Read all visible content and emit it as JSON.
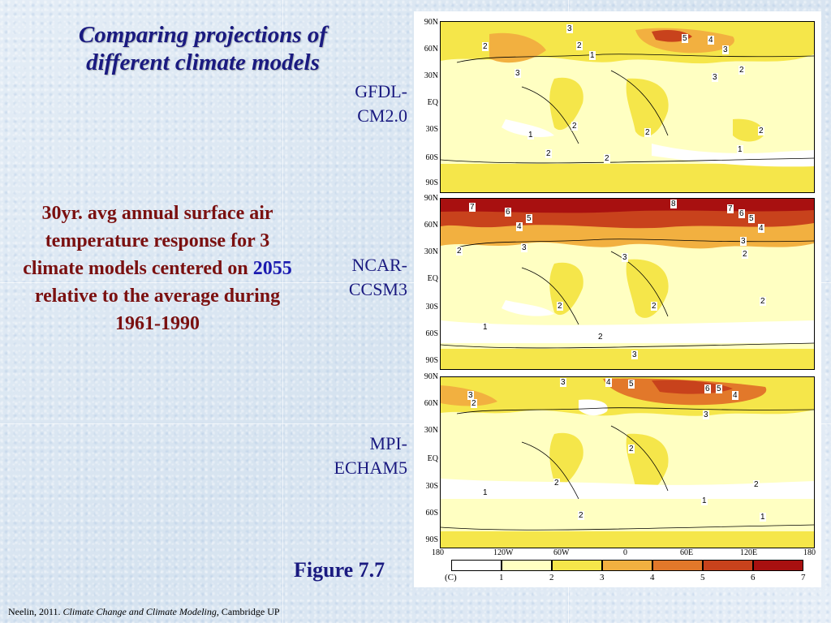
{
  "title": {
    "line1": "Comparing projections of",
    "line2": "different climate models"
  },
  "description": {
    "part1": "30yr. avg annual surface air temperature response for 3 climate models centered on",
    "year": "2055",
    "part2": "relative to the average during 1961-1990"
  },
  "colors": {
    "title": "#1a1a80",
    "description": "#7a1010",
    "year_highlight": "#1a1ab0"
  },
  "models": [
    {
      "line1": "GFDL-",
      "line2": "CM2.0",
      "lat_labels": [
        "90N",
        "60N",
        "30N",
        "EQ",
        "30S",
        "60S",
        "90S"
      ],
      "contour_labels": [
        "3",
        "2",
        "1",
        "5",
        "4",
        "3",
        "2",
        "3",
        "3",
        "2",
        "1",
        "2",
        "2",
        "2",
        "2",
        "1",
        "2"
      ]
    },
    {
      "line1": "NCAR-",
      "line2": "CCSM3",
      "lat_labels": [
        "90N",
        "60N",
        "30N",
        "EQ",
        "30S",
        "60S",
        "90S"
      ],
      "contour_labels": [
        "7",
        "6",
        "5",
        "4",
        "8",
        "7",
        "6",
        "5",
        "4",
        "3",
        "2",
        "3",
        "2",
        "3",
        "2",
        "2",
        "2",
        "1",
        "2",
        "3"
      ]
    },
    {
      "line1": "MPI-",
      "line2": "ECHAM5",
      "lat_labels": [
        "90N",
        "60N",
        "30N",
        "EQ",
        "30S",
        "60S",
        "90S"
      ],
      "contour_labels": [
        "3",
        "4",
        "5",
        "6",
        "5",
        "4",
        "3",
        "2",
        "3",
        "2",
        "2",
        "1",
        "2",
        "1",
        "2",
        "1"
      ]
    }
  ],
  "lon_labels": [
    "180",
    "120W",
    "60W",
    "0",
    "60E",
    "120E",
    "180"
  ],
  "colorbar": {
    "unit": "(C)",
    "ticks": [
      "1",
      "2",
      "3",
      "4",
      "5",
      "6",
      "7"
    ],
    "colors": [
      "#ffffff",
      "#ffffc2",
      "#f5e64a",
      "#f2b040",
      "#e2782a",
      "#c8421c",
      "#a81010"
    ]
  },
  "figure_label": "Figure 7.7",
  "citation": {
    "prefix": "Neelin, 2011.",
    "book": "Climate Change and Climate Modeling,",
    "publisher": "Cambridge UP"
  }
}
